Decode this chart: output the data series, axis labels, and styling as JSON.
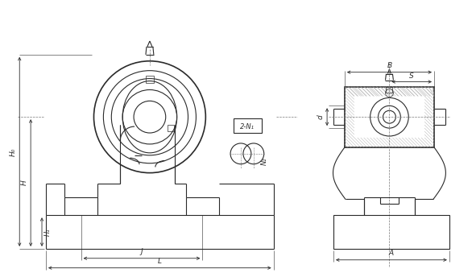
{
  "bg_color": "#ffffff",
  "line_color": "#2a2a2a",
  "dim_color": "#2a2a2a",
  "lw": 0.8,
  "lw_thick": 1.2,
  "lw_thin": 0.5,
  "lw_dim": 0.6,
  "fig_w": 5.91,
  "fig_h": 3.39,
  "labels": {
    "H0": "H₀",
    "H": "H",
    "H1": "H₁",
    "J": "J",
    "L": "L",
    "B": "B",
    "A": "A",
    "d": "d",
    "S": "S",
    "N1": "2-N₁",
    "N2": "N₂"
  }
}
